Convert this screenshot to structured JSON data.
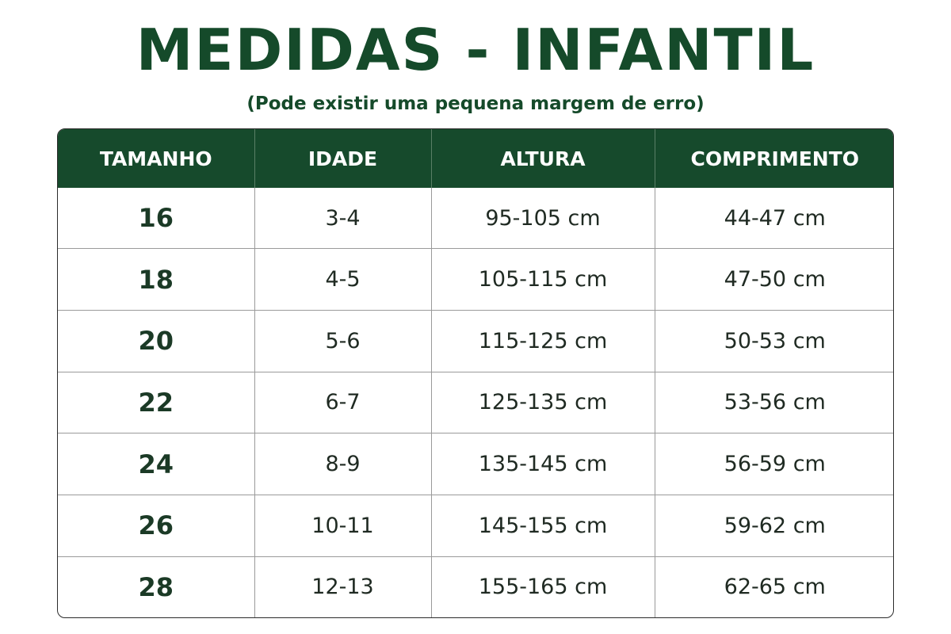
{
  "title": "MEDIDAS - INFANTIL",
  "subtitle": "(Pode existir uma pequena margem de erro)",
  "colors": {
    "header_bg": "#164a2c",
    "title": "#154a2a",
    "header_text": "#ffffff"
  },
  "table": {
    "headers": [
      "TAMANHO",
      "IDADE",
      "ALTURA",
      "COMPRIMENTO"
    ],
    "rows": [
      [
        "16",
        "3-4",
        "95-105 cm",
        "44-47 cm"
      ],
      [
        "18",
        "4-5",
        "105-115 cm",
        "47-50 cm"
      ],
      [
        "20",
        "5-6",
        "115-125 cm",
        "50-53 cm"
      ],
      [
        "22",
        "6-7",
        "125-135 cm",
        "53-56 cm"
      ],
      [
        "24",
        "8-9",
        "135-145 cm",
        "56-59 cm"
      ],
      [
        "26",
        "10-11",
        "145-155 cm",
        "59-62 cm"
      ],
      [
        "28",
        "12-13",
        "155-165 cm",
        "62-65 cm"
      ]
    ]
  }
}
